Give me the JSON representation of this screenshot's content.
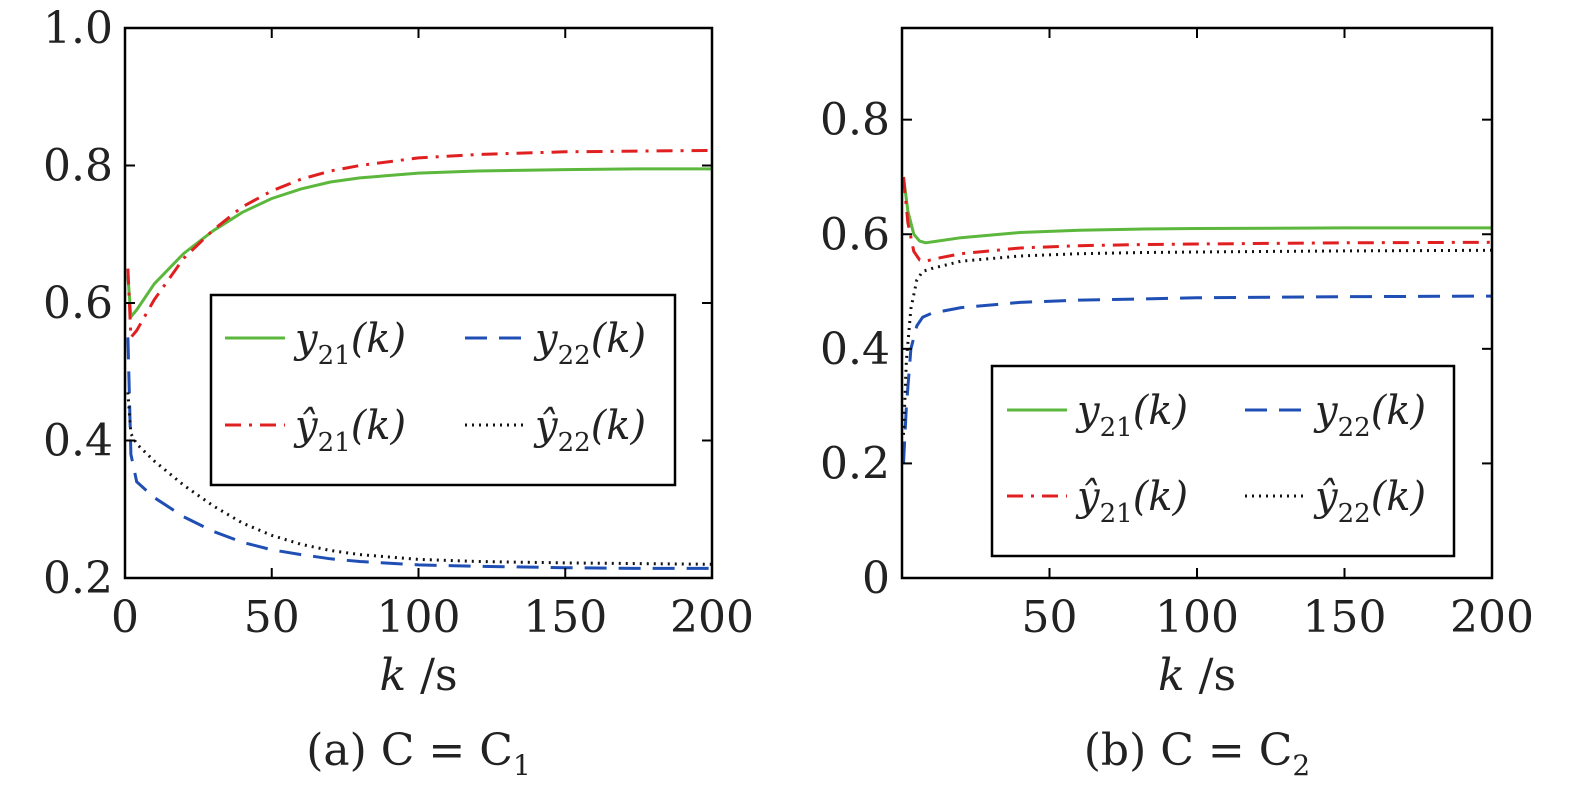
{
  "chart_data": [
    {
      "type": "line",
      "caption": "(a)  C = C",
      "caption_sub": "1",
      "xlabel": "k",
      "xlabel_unit": " /s",
      "xlim": [
        0,
        200
      ],
      "ylim": [
        0.2,
        1.0
      ],
      "xticks": [
        "0",
        "50",
        "100",
        "150",
        "200"
      ],
      "xtick_values": [
        0,
        50,
        100,
        150,
        200
      ],
      "yticks": [
        "0.2",
        "0.4",
        "0.6",
        "0.8",
        "1.0"
      ],
      "ytick_values": [
        0.2,
        0.4,
        0.6,
        0.8,
        1.0
      ],
      "legend_position": "center-right",
      "series": [
        {
          "name": "y21(k)",
          "label_main": "y",
          "label_sub": "21",
          "label_tail": "(k)",
          "color": "#5cb83c",
          "style": "solid",
          "x": [
            1,
            2,
            4,
            10,
            20,
            30,
            40,
            50,
            60,
            70,
            80,
            100,
            120,
            150,
            175,
            200
          ],
          "y": [
            0.64,
            0.58,
            0.59,
            0.628,
            0.672,
            0.705,
            0.732,
            0.752,
            0.766,
            0.776,
            0.782,
            0.789,
            0.792,
            0.794,
            0.795,
            0.795
          ]
        },
        {
          "name": "ŷ21(k)",
          "label_main": "ŷ",
          "label_sub": "21",
          "label_tail": "(k)",
          "color": "#e02020",
          "style": "dashdot",
          "x": [
            1,
            2,
            4,
            10,
            20,
            30,
            40,
            50,
            60,
            70,
            80,
            100,
            120,
            150,
            175,
            200
          ],
          "y": [
            0.65,
            0.55,
            0.56,
            0.605,
            0.665,
            0.706,
            0.74,
            0.763,
            0.78,
            0.792,
            0.8,
            0.811,
            0.816,
            0.82,
            0.821,
            0.822
          ]
        },
        {
          "name": "y22(k)",
          "label_main": "y",
          "label_sub": "22",
          "label_tail": "(k)",
          "color": "#1f4fb4",
          "style": "dashed",
          "x": [
            1,
            2,
            4,
            10,
            20,
            30,
            40,
            50,
            60,
            70,
            80,
            100,
            120,
            150,
            175,
            200
          ],
          "y": [
            0.55,
            0.38,
            0.34,
            0.317,
            0.289,
            0.268,
            0.252,
            0.241,
            0.234,
            0.228,
            0.224,
            0.219,
            0.217,
            0.215,
            0.214,
            0.214
          ]
        },
        {
          "name": "ŷ22(k)",
          "label_main": "ŷ",
          "label_sub": "22",
          "label_tail": "(k)",
          "color": "#111111",
          "style": "dotted",
          "x": [
            1,
            2,
            4,
            10,
            20,
            30,
            40,
            50,
            60,
            70,
            80,
            100,
            120,
            150,
            175,
            200
          ],
          "y": [
            0.47,
            0.41,
            0.395,
            0.37,
            0.335,
            0.305,
            0.28,
            0.262,
            0.249,
            0.24,
            0.234,
            0.227,
            0.224,
            0.222,
            0.221,
            0.22
          ]
        }
      ]
    },
    {
      "type": "line",
      "caption": "(b)  C = C",
      "caption_sub": "2",
      "xlabel": "k",
      "xlabel_unit": " /s",
      "xlim": [
        0,
        200
      ],
      "ylim": [
        0,
        0.96
      ],
      "xticks": [
        "50",
        "100",
        "150",
        "200"
      ],
      "xtick_values": [
        50,
        100,
        150,
        200
      ],
      "yticks": [
        "0",
        "0.2",
        "0.4",
        "0.6",
        "0.8"
      ],
      "ytick_values": [
        0,
        0.2,
        0.4,
        0.6,
        0.8
      ],
      "legend_position": "lower-right",
      "series": [
        {
          "name": "y21(k)",
          "label_main": "y",
          "label_sub": "21",
          "label_tail": "(k)",
          "color": "#5cb83c",
          "style": "solid",
          "x": [
            0.5,
            2,
            4,
            6,
            8,
            12,
            20,
            40,
            60,
            80,
            100,
            150,
            200
          ],
          "y": [
            0.7,
            0.64,
            0.6,
            0.588,
            0.585,
            0.588,
            0.594,
            0.603,
            0.607,
            0.609,
            0.61,
            0.611,
            0.611
          ]
        },
        {
          "name": "ŷ21(k)",
          "label_main": "ŷ",
          "label_sub": "21",
          "label_tail": "(k)",
          "color": "#e02020",
          "style": "dashdot",
          "x": [
            0.5,
            2,
            4,
            6,
            8,
            12,
            20,
            40,
            60,
            80,
            100,
            150,
            200
          ],
          "y": [
            0.7,
            0.62,
            0.57,
            0.555,
            0.553,
            0.558,
            0.566,
            0.576,
            0.58,
            0.582,
            0.583,
            0.585,
            0.586
          ]
        },
        {
          "name": "y22(k)",
          "label_main": "y",
          "label_sub": "22",
          "label_tail": "(k)",
          "color": "#1f4fb4",
          "style": "dashed",
          "x": [
            0.5,
            1.5,
            3,
            5,
            7,
            10,
            20,
            40,
            60,
            80,
            100,
            150,
            200
          ],
          "y": [
            0.2,
            0.3,
            0.4,
            0.44,
            0.455,
            0.462,
            0.472,
            0.481,
            0.485,
            0.487,
            0.489,
            0.491,
            0.492
          ]
        },
        {
          "name": "ŷ22(k)",
          "label_main": "ŷ",
          "label_sub": "22",
          "label_tail": "(k)",
          "color": "#111111",
          "style": "dotted",
          "x": [
            0.5,
            1.5,
            3,
            5,
            7,
            10,
            20,
            40,
            60,
            80,
            100,
            150,
            200
          ],
          "y": [
            0.25,
            0.38,
            0.47,
            0.52,
            0.535,
            0.54,
            0.553,
            0.562,
            0.566,
            0.568,
            0.569,
            0.571,
            0.572
          ]
        }
      ]
    }
  ]
}
